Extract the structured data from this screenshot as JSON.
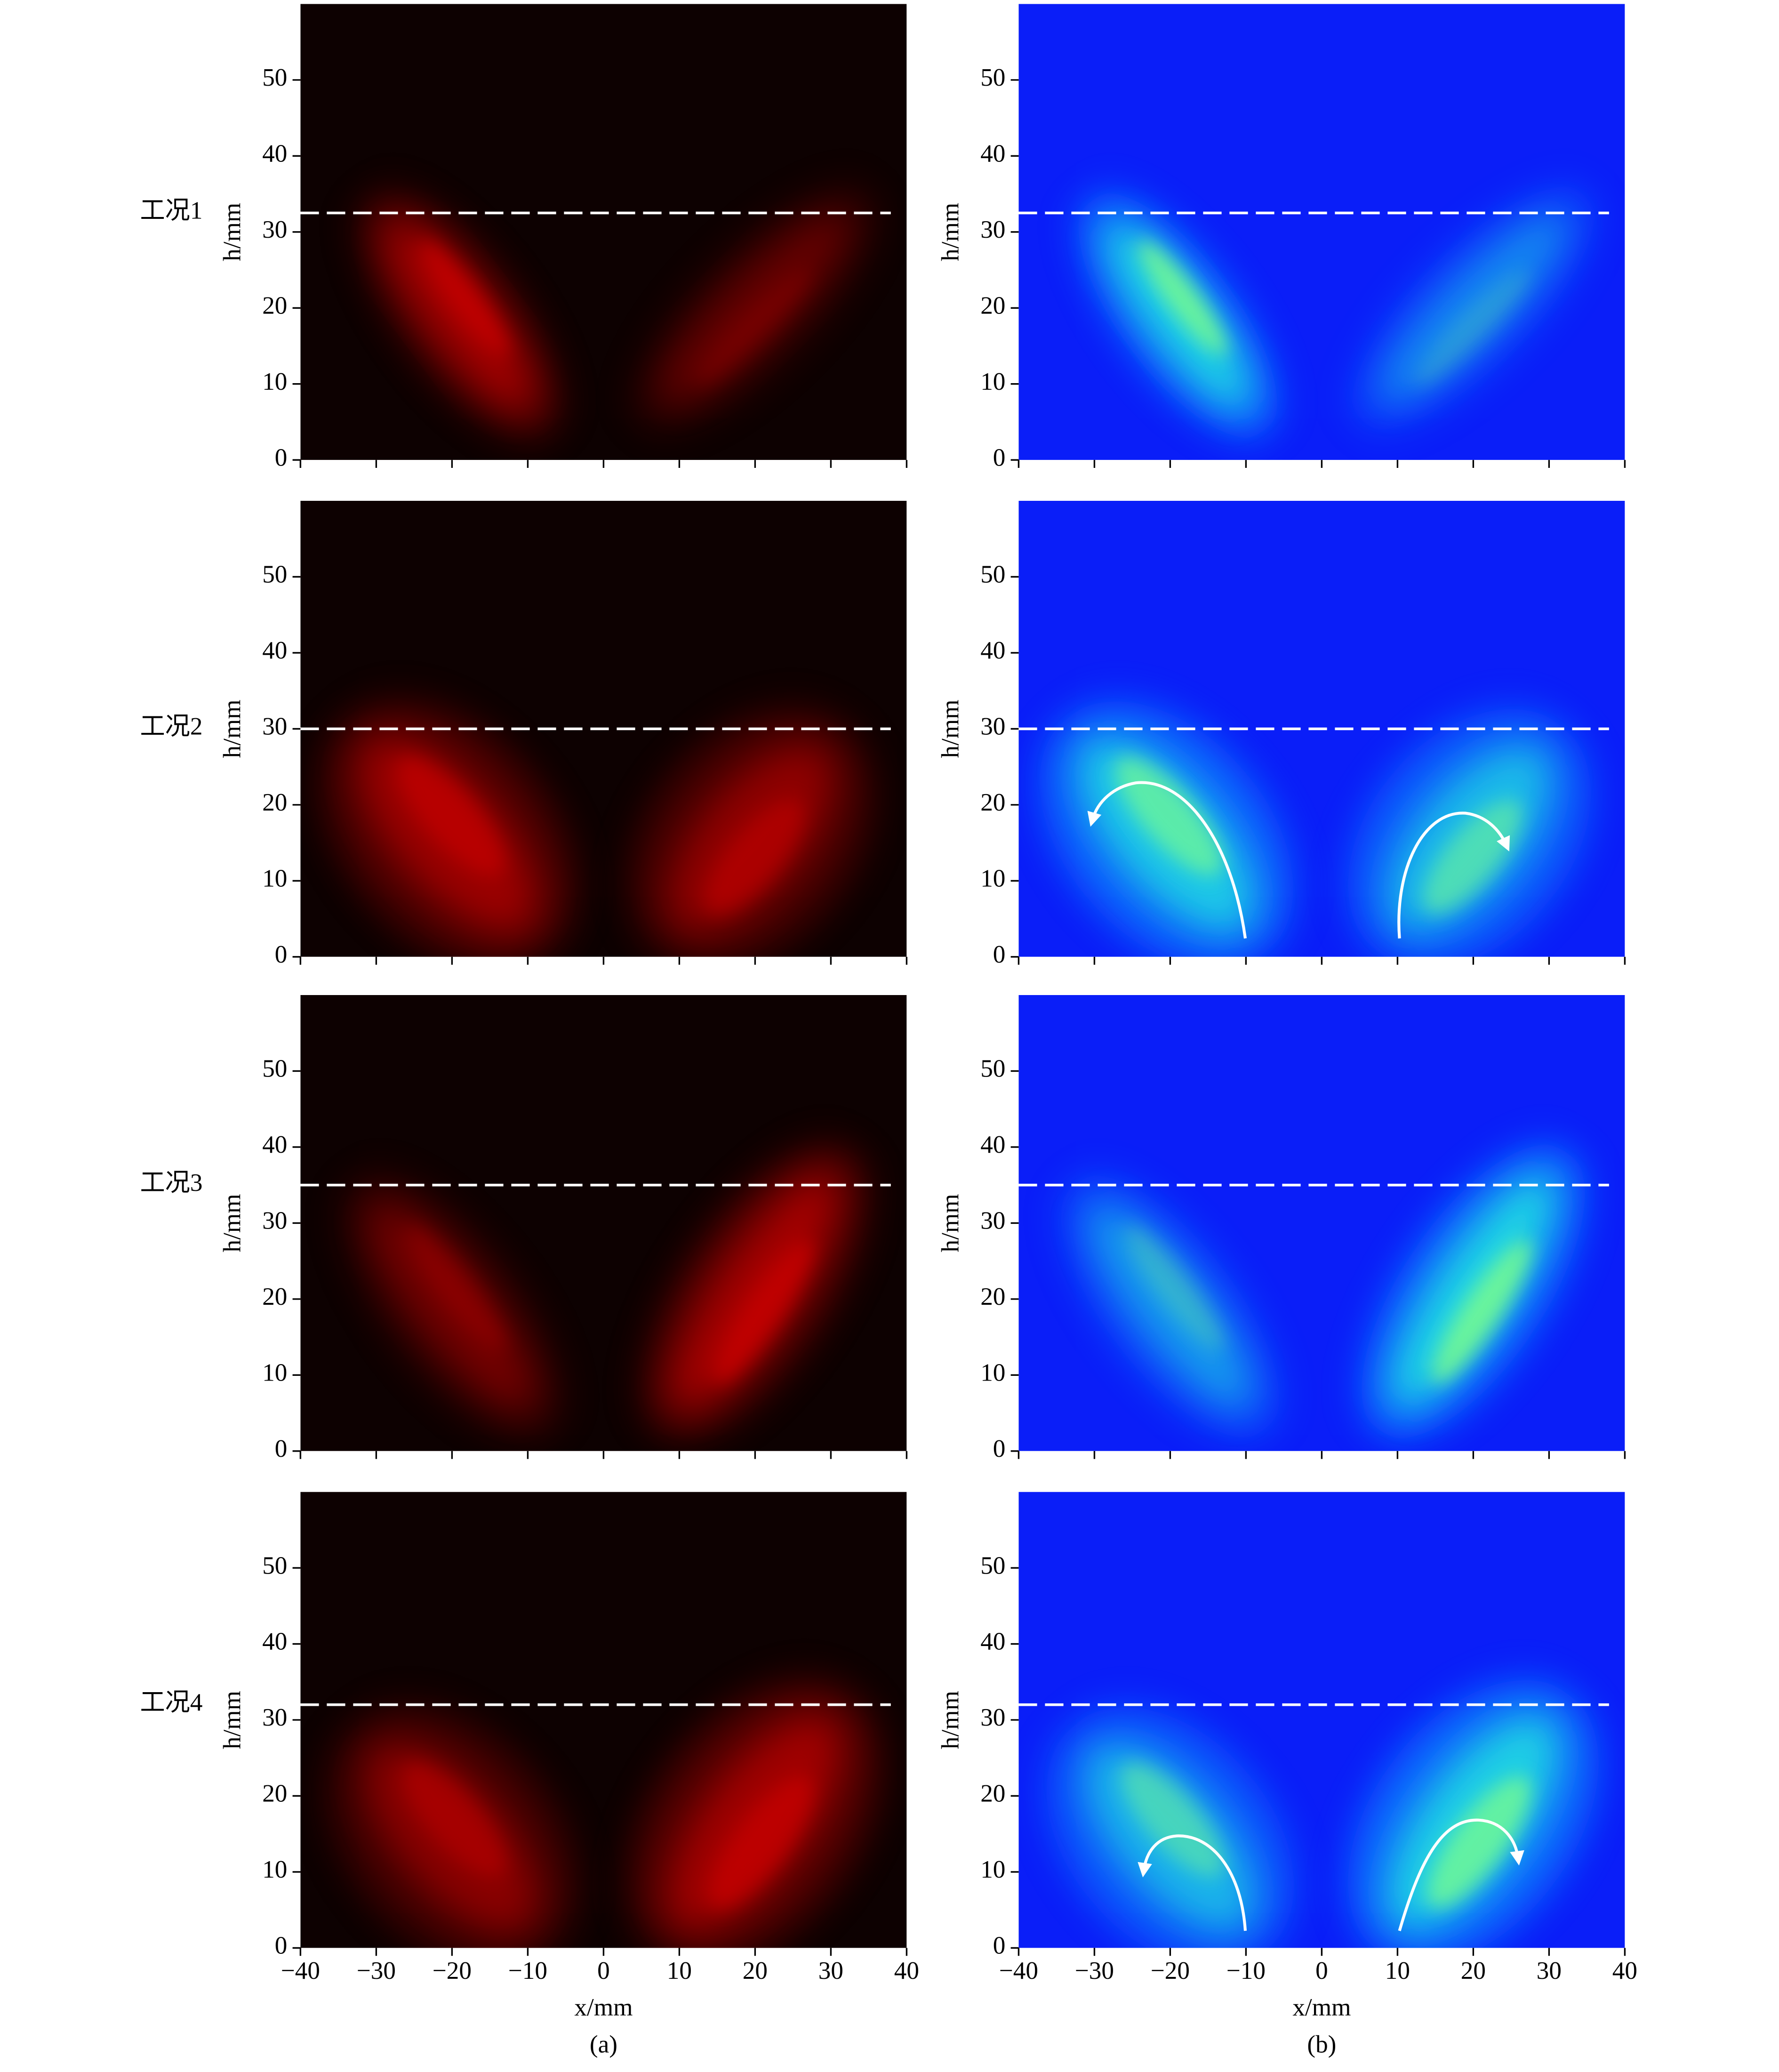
{
  "chart_data": [
    {
      "type": "heatmap",
      "colormap": "red",
      "xlim": [
        -40,
        40
      ],
      "ylim": [
        0,
        60
      ],
      "xticks": [
        -40,
        -30,
        -20,
        -10,
        0,
        10,
        20,
        30,
        40
      ],
      "yticks": [
        0,
        10,
        20,
        30,
        40,
        50
      ],
      "ylabel": "h/mm",
      "reference_line": 32.5,
      "row_label": "工况1"
    },
    {
      "type": "heatmap",
      "colormap": "jet",
      "xlim": [
        -40,
        40
      ],
      "ylim": [
        0,
        60
      ],
      "xticks": [
        -40,
        -30,
        -20,
        -10,
        0,
        10,
        20,
        30,
        40
      ],
      "yticks": [
        0,
        10,
        20,
        30,
        40,
        50
      ],
      "ylabel": "h/mm",
      "reference_line": 32.5
    },
    {
      "type": "heatmap",
      "colormap": "red",
      "xlim": [
        -40,
        40
      ],
      "ylim": [
        0,
        60
      ],
      "xticks": [
        -40,
        -30,
        -20,
        -10,
        0,
        10,
        20,
        30,
        40
      ],
      "yticks": [
        0,
        10,
        20,
        30,
        40,
        50
      ],
      "ylabel": "h/mm",
      "reference_line": 30,
      "row_label": "工况2"
    },
    {
      "type": "heatmap",
      "colormap": "jet",
      "xlim": [
        -40,
        40
      ],
      "ylim": [
        0,
        60
      ],
      "xticks": [
        -40,
        -30,
        -20,
        -10,
        0,
        10,
        20,
        30,
        40
      ],
      "yticks": [
        0,
        10,
        20,
        30,
        40,
        50
      ],
      "ylabel": "h/mm",
      "reference_line": 30
    },
    {
      "type": "heatmap",
      "colormap": "red",
      "xlim": [
        -40,
        40
      ],
      "ylim": [
        0,
        60
      ],
      "xticks": [
        -40,
        -30,
        -20,
        -10,
        0,
        10,
        20,
        30,
        40
      ],
      "yticks": [
        0,
        10,
        20,
        30,
        40,
        50
      ],
      "ylabel": "h/mm",
      "reference_line": 35,
      "row_label": "工况3"
    },
    {
      "type": "heatmap",
      "colormap": "jet",
      "xlim": [
        -40,
        40
      ],
      "ylim": [
        0,
        60
      ],
      "xticks": [
        -40,
        -30,
        -20,
        -10,
        0,
        10,
        20,
        30,
        40
      ],
      "yticks": [
        0,
        10,
        20,
        30,
        40,
        50
      ],
      "ylabel": "h/mm",
      "reference_line": 35
    },
    {
      "type": "heatmap",
      "colormap": "red",
      "xlim": [
        -40,
        40
      ],
      "ylim": [
        0,
        60
      ],
      "xticks": [
        {
          "value": -40,
          "label": "−40"
        },
        {
          "value": -30,
          "label": "−30"
        },
        {
          "value": -20,
          "label": "−20"
        },
        {
          "value": -10,
          "label": "−10"
        },
        0,
        10,
        20,
        30,
        40
      ],
      "yticks": [
        0,
        10,
        20,
        30,
        40,
        50
      ],
      "ylabel": "h/mm",
      "xlabel": "x/mm",
      "reference_line": 32,
      "row_label": "工况4",
      "caption": "(a)"
    },
    {
      "type": "heatmap",
      "colormap": "jet",
      "xlim": [
        -40,
        40
      ],
      "ylim": [
        0,
        60
      ],
      "xticks": [
        {
          "value": -40,
          "label": "−40"
        },
        {
          "value": -30,
          "label": "−30"
        },
        {
          "value": -20,
          "label": "−20"
        },
        {
          "value": -10,
          "label": "−10"
        },
        0,
        10,
        20,
        30,
        40
      ],
      "yticks": [
        0,
        10,
        20,
        30,
        40,
        50
      ],
      "ylabel": "h/mm",
      "xlabel": "x/mm",
      "reference_line": 32,
      "caption": "(b)"
    }
  ]
}
